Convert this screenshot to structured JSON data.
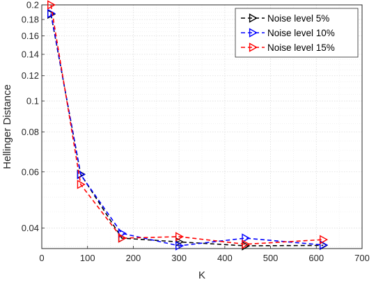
{
  "chart_data": {
    "type": "line",
    "xlabel": "K",
    "ylabel": "Hellinger Distance",
    "xlim": [
      0,
      700
    ],
    "ylim": [
      0.0345,
      0.2
    ],
    "yscale": "log",
    "grid": true,
    "legend_position": "top-right",
    "x_ticks": [
      "0",
      "100",
      "200",
      "300",
      "400",
      "500",
      "600",
      "700"
    ],
    "y_ticks": [
      "0.04",
      "0.06",
      "0.08",
      "0.1",
      "0.12",
      "0.14",
      "0.16",
      "0.18",
      "0.2"
    ],
    "x": [
      20,
      85,
      175,
      300,
      445,
      615
    ],
    "series": [
      {
        "name": "Noise level 5%",
        "color": "#000000",
        "marker": "right-triangle",
        "values": [
          0.187,
          0.059,
          0.0372,
          0.0362,
          0.0352,
          0.0353
        ]
      },
      {
        "name": "Noise level 10%",
        "color": "#0000ff",
        "marker": "right-triangle",
        "values": [
          0.188,
          0.0588,
          0.0385,
          0.0352,
          0.0372,
          0.0354
        ]
      },
      {
        "name": "Noise level 15%",
        "color": "#ff0000",
        "marker": "right-triangle",
        "values": [
          0.2,
          0.0548,
          0.0372,
          0.0376,
          0.0356,
          0.0368
        ]
      }
    ]
  }
}
